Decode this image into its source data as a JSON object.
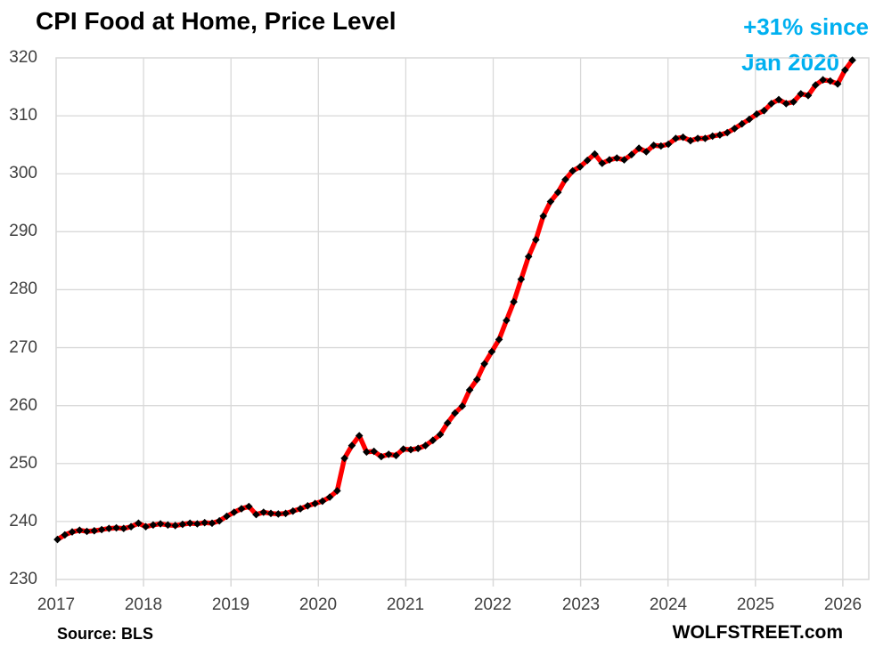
{
  "header": {
    "title": "CPI Food at Home, Price Level"
  },
  "annotation": {
    "line1": "+31% since",
    "line2": "Jan 2020",
    "color": "#00B0F0"
  },
  "footer": {
    "source": "Source: BLS",
    "branding": "WOLFSTREET.com"
  },
  "colors": {
    "line": "#FF0000",
    "marker": "#000000",
    "grid": "#D9D9D9",
    "tick_text": "#404040",
    "title_text": "#000000"
  },
  "chart_data": {
    "type": "line",
    "title": "CPI Food at Home, Price Level",
    "series_name": "CPI Food at Home, Price Level",
    "frequency": "monthly",
    "x_start": "2017-01",
    "x_end": "2026-01",
    "xlabel": "",
    "ylabel": "",
    "ylim": [
      230,
      320
    ],
    "ytick_step": 10,
    "grid": true,
    "legend": false,
    "line_color": "#FF0000",
    "marker_color": "#000000",
    "ytick_labels": [
      "320",
      "310",
      "300",
      "290",
      "280",
      "270",
      "260",
      "250",
      "240",
      "230"
    ],
    "xtick_labels": [
      "2017",
      "2018",
      "2019",
      "2020",
      "2021",
      "2022",
      "2023",
      "2024",
      "2025",
      "2026"
    ],
    "values": [
      236.9,
      237.7,
      238.2,
      238.5,
      238.3,
      238.4,
      238.6,
      238.8,
      238.9,
      238.8,
      239.1,
      239.7,
      239.1,
      239.4,
      239.6,
      239.4,
      239.3,
      239.5,
      239.7,
      239.6,
      239.8,
      239.7,
      240.1,
      240.9,
      241.6,
      242.2,
      242.6,
      241.2,
      241.6,
      241.4,
      241.3,
      241.4,
      241.8,
      242.2,
      242.7,
      243.1,
      243.5,
      244.2,
      245.3,
      250.9,
      253.1,
      254.8,
      252.0,
      252.1,
      251.2,
      251.6,
      251.4,
      252.5,
      252.4,
      252.6,
      253.1,
      254.0,
      255.0,
      257.0,
      258.7,
      259.9,
      262.7,
      264.5,
      267.2,
      269.3,
      271.4,
      274.7,
      277.9,
      281.8,
      285.7,
      288.6,
      292.7,
      295.2,
      296.8,
      299.0,
      300.5,
      301.2,
      302.3,
      303.4,
      301.8,
      302.4,
      302.7,
      302.4,
      303.3,
      304.4,
      303.8,
      304.9,
      304.8,
      305.1,
      306.1,
      306.3,
      305.7,
      306.1,
      306.1,
      306.5,
      306.7,
      307.1,
      307.8,
      308.6,
      309.4,
      310.3,
      310.9,
      312.1,
      312.8,
      312.1,
      312.4,
      313.8,
      313.5,
      315.3,
      316.2,
      316.0,
      315.5,
      317.9,
      319.6
    ]
  }
}
